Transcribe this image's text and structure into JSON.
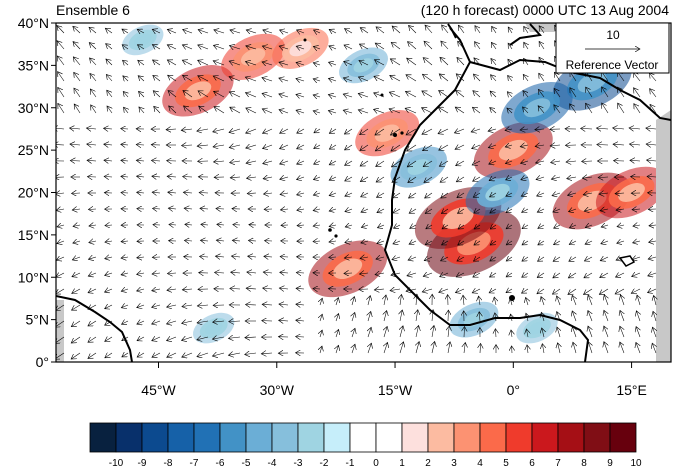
{
  "titles": {
    "left": "Ensemble 6",
    "right": "(120 h forecast) 0000 UTC 13 Aug 2004"
  },
  "map": {
    "lat_labels": [
      "0°",
      "5°N",
      "10°N",
      "15°N",
      "20°N",
      "25°N",
      "30°N",
      "35°N",
      "40°N"
    ],
    "lat_values": [
      0,
      5,
      10,
      15,
      20,
      25,
      30,
      35,
      40
    ],
    "lon_labels": [
      "45°W",
      "30°W",
      "15°W",
      "0°",
      "15°E"
    ],
    "lon_values": [
      -45,
      -30,
      -15,
      0,
      15
    ],
    "lon_range": [
      -58,
      20
    ],
    "lat_range": [
      0,
      40
    ]
  },
  "reference_vector": {
    "value": "10",
    "label": "Reference Vector"
  },
  "colorbar": {
    "labels": [
      "-10",
      "-9",
      "-8",
      "-7",
      "-6",
      "-5",
      "-4",
      "-3",
      "-2",
      "-1",
      "0",
      "1",
      "2",
      "3",
      "4",
      "5",
      "6",
      "7",
      "8",
      "9",
      "10"
    ],
    "colors": [
      "#08213f",
      "#08306b",
      "#0c4a8f",
      "#1661a8",
      "#2171b5",
      "#4292c6",
      "#6baed6",
      "#86bfdc",
      "#9fd4e2",
      "#c6eefa",
      "#ffffff",
      "#ffffff",
      "#fde0dd",
      "#fcbba1",
      "#fc9272",
      "#fb6a4a",
      "#ef3b2c",
      "#cb181d",
      "#a50f15",
      "#800e15",
      "#67000d"
    ]
  },
  "colors": {
    "negative": "#9fd4e2",
    "positive": "#ef3b2c",
    "land_mask": "#c8c8c8",
    "coast": "#000000"
  },
  "anomaly_blobs": [
    {
      "lon": -40,
      "lat": 32,
      "value": 6
    },
    {
      "lon": -33,
      "lat": 36,
      "value": 5
    },
    {
      "lon": -27,
      "lat": 37,
      "value": 4
    },
    {
      "lon": -16,
      "lat": 27,
      "value": 5
    },
    {
      "lon": -21,
      "lat": 11,
      "value": 7
    },
    {
      "lon": -5,
      "lat": 14,
      "value": 9
    },
    {
      "lon": 0,
      "lat": 25,
      "value": 7
    },
    {
      "lon": -7,
      "lat": 17,
      "value": 8
    },
    {
      "lon": 10,
      "lat": 19,
      "value": 7
    },
    {
      "lon": 15,
      "lat": 20,
      "value": 6
    },
    {
      "lon": 10,
      "lat": 33,
      "value": -7
    },
    {
      "lon": 3,
      "lat": 30,
      "value": -6
    },
    {
      "lon": -12,
      "lat": 23,
      "value": -4
    },
    {
      "lon": -19,
      "lat": 35,
      "value": -3
    },
    {
      "lon": -47,
      "lat": 38,
      "value": -2
    },
    {
      "lon": -38,
      "lat": 4,
      "value": -2
    },
    {
      "lon": -5,
      "lat": 5,
      "value": -3
    },
    {
      "lon": 3,
      "lat": 4,
      "value": -2
    },
    {
      "lon": -2,
      "lat": 20,
      "value": -5
    }
  ]
}
